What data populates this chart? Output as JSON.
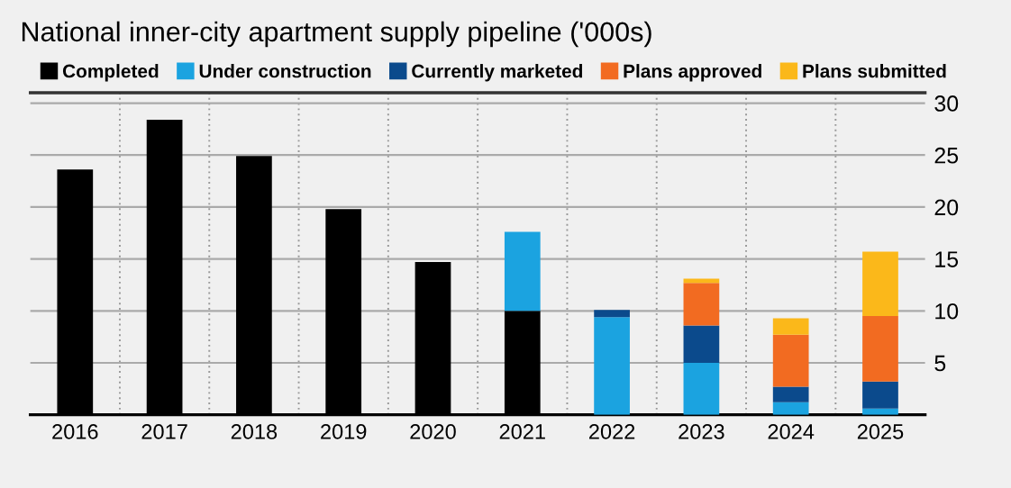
{
  "chart_data": {
    "type": "bar",
    "title": "National inner-city apartment supply pipeline ('000s)",
    "categories": [
      "2016",
      "2017",
      "2018",
      "2019",
      "2020",
      "2021",
      "2022",
      "2023",
      "2024",
      "2025"
    ],
    "stacked": true,
    "series": [
      {
        "name": "Completed",
        "color": "#000000",
        "values": [
          23.6,
          28.4,
          24.9,
          19.8,
          14.7,
          10,
          null,
          null,
          null,
          null
        ]
      },
      {
        "name": "Under construction",
        "color": "#1ba3e0",
        "values": [
          null,
          null,
          null,
          null,
          null,
          7.6,
          9.4,
          5.0,
          1.2,
          0.6
        ]
      },
      {
        "name": "Currently marketed",
        "color": "#0b4a8c",
        "values": [
          null,
          null,
          null,
          null,
          null,
          null,
          0.7,
          3.6,
          1.5,
          2.6
        ]
      },
      {
        "name": "Plans approved",
        "color": "#f26b21",
        "values": [
          null,
          null,
          null,
          null,
          null,
          null,
          null,
          4.1,
          5.0,
          6.3
        ]
      },
      {
        "name": "Plans submitted",
        "color": "#fbb81a",
        "values": [
          null,
          null,
          null,
          null,
          null,
          null,
          null,
          0.4,
          1.6,
          6.2
        ]
      }
    ],
    "ylim": [
      0,
      31
    ],
    "yticks": [
      5,
      10,
      15,
      20,
      25,
      30
    ],
    "grid": "y",
    "legend": "top"
  }
}
